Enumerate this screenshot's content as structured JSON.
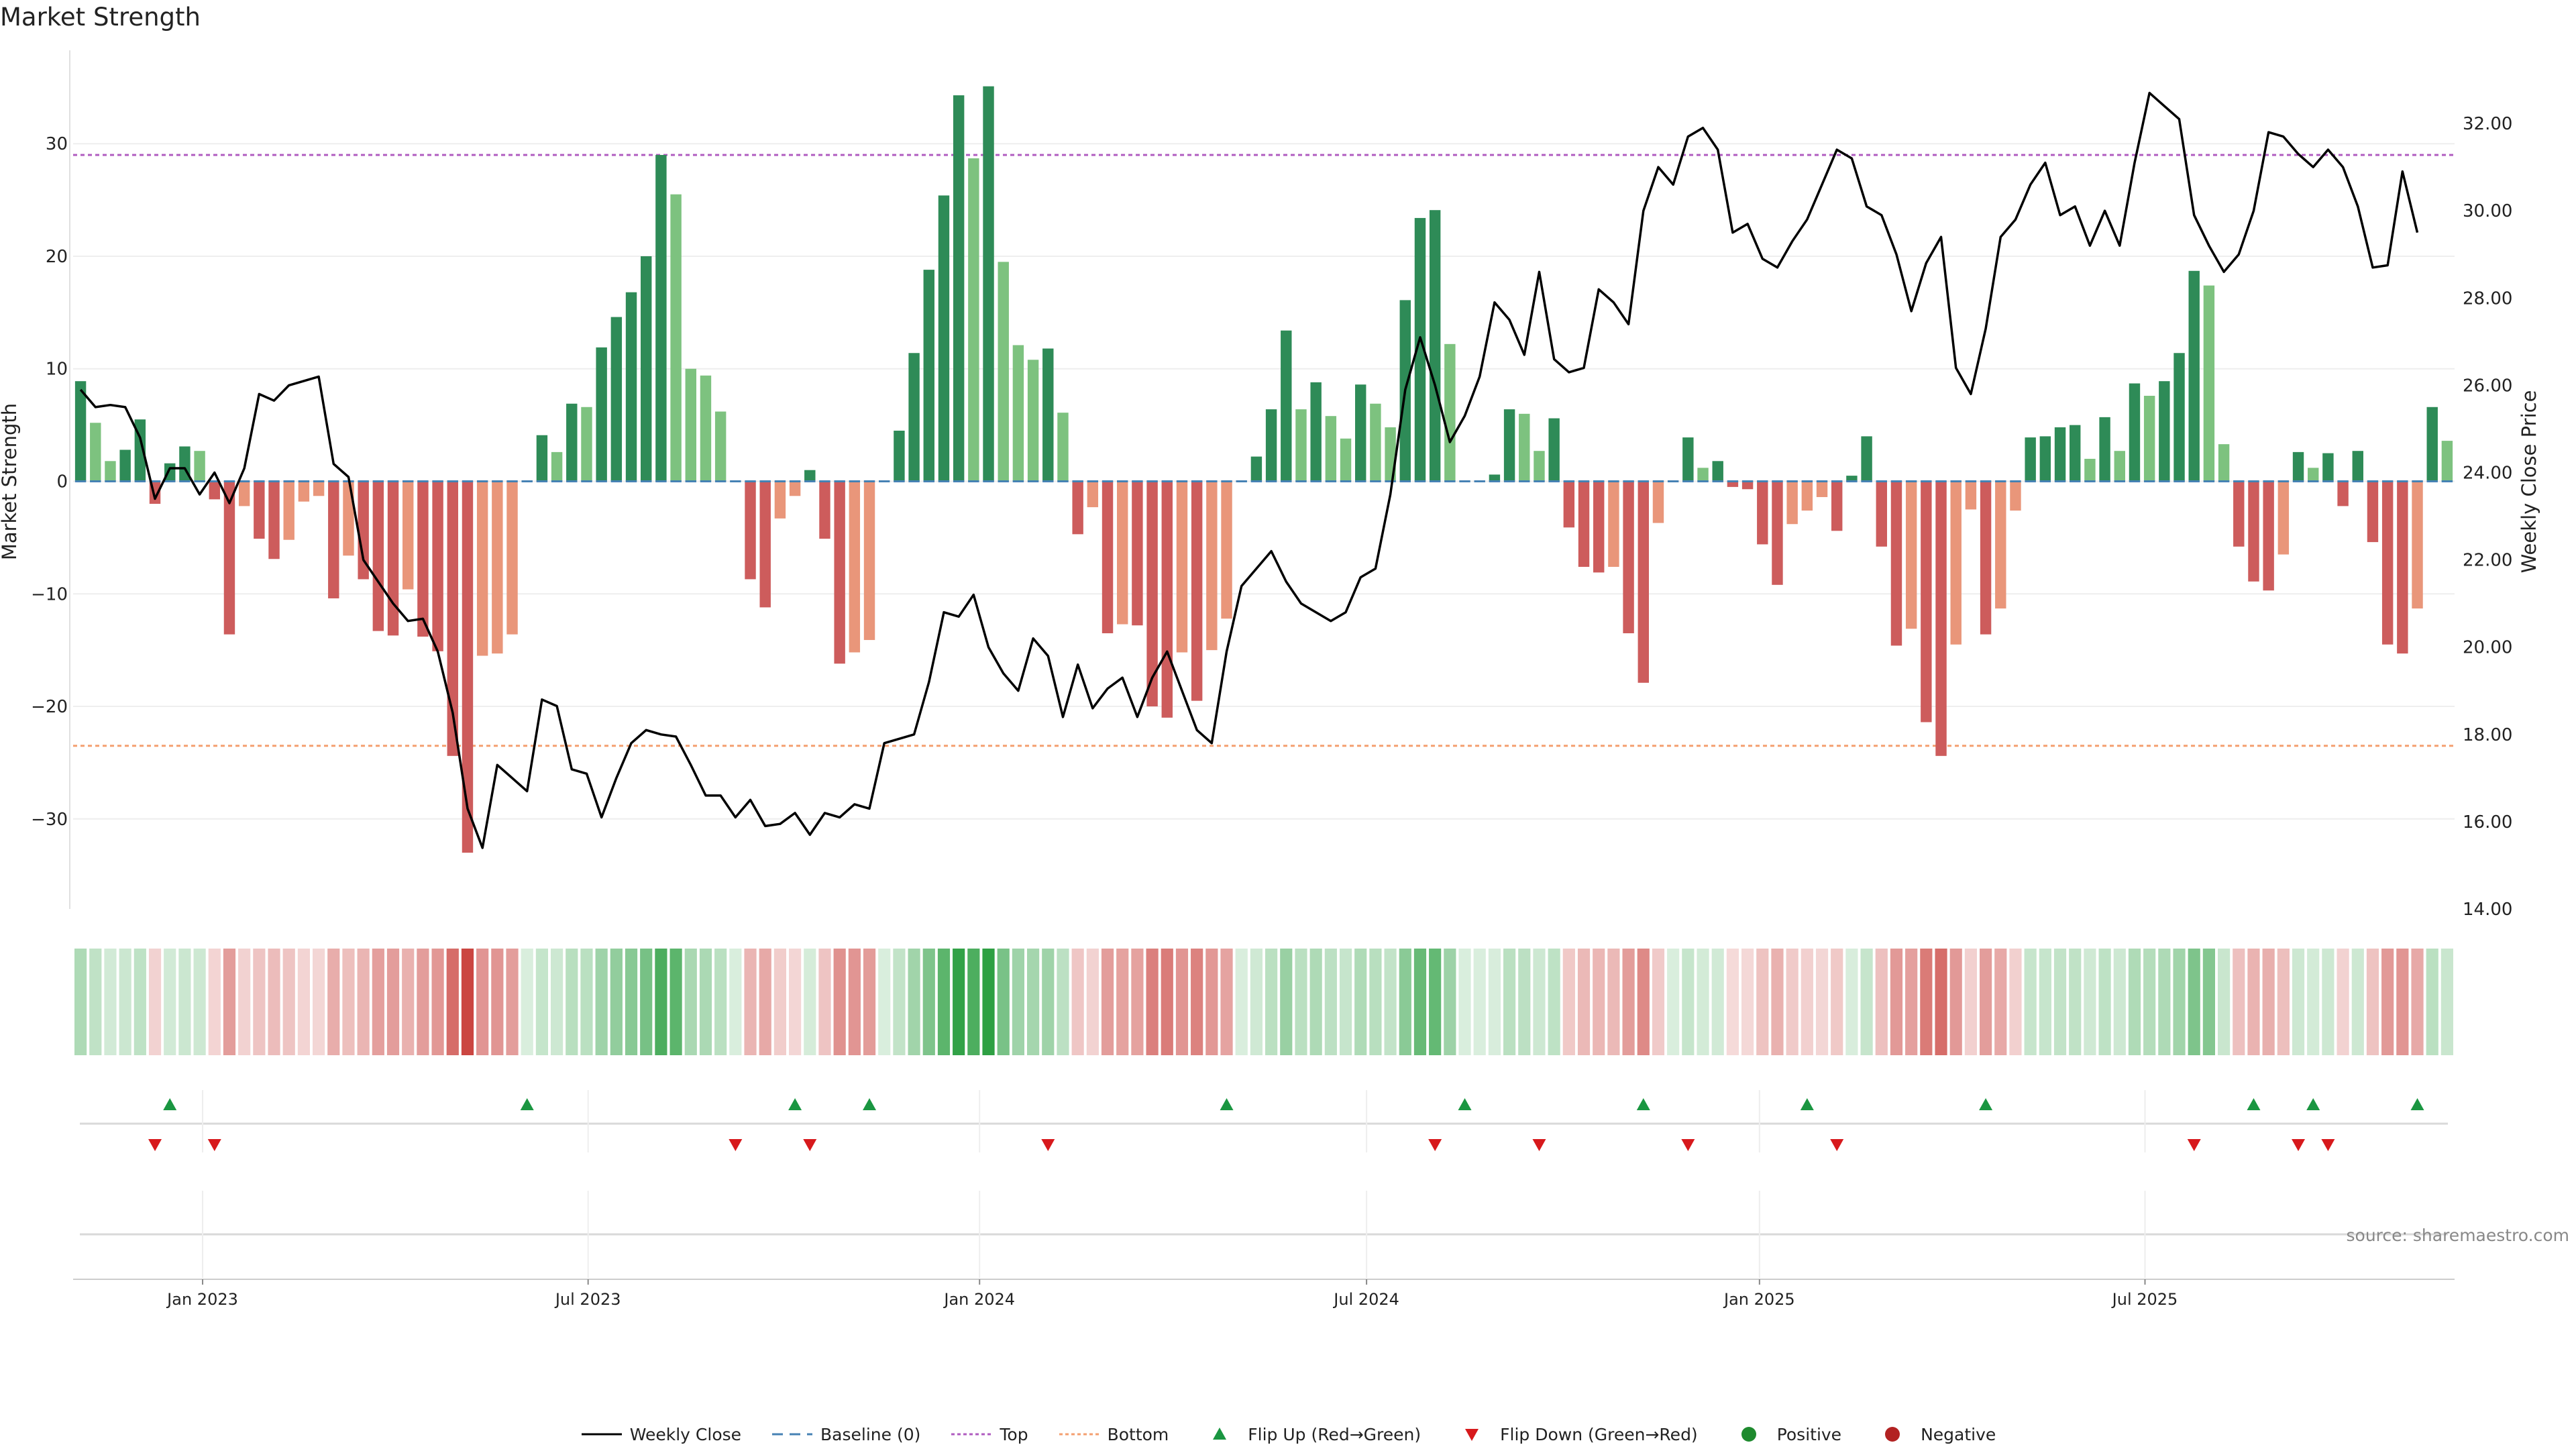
{
  "title": "Market Strength",
  "source": "source: sharemaestro.com",
  "colors": {
    "pos_strong": "#2e8b57",
    "pos_light": "#7dc27f",
    "neg_strong": "#cd5c5c",
    "neg_light": "#e9967a",
    "top_line": "#b05cc0",
    "bottom_line": "#f4a070",
    "baseline": "#4682b4",
    "flip_up": "#1a9641",
    "flip_down": "#d7191c",
    "price": "#000000"
  },
  "legend": [
    {
      "key": "weekly_close",
      "label": "Weekly Close"
    },
    {
      "key": "baseline",
      "label": "Baseline (0)"
    },
    {
      "key": "top",
      "label": "Top"
    },
    {
      "key": "bottom",
      "label": "Bottom"
    },
    {
      "key": "flip_up",
      "label": "Flip Up (Red→Green)"
    },
    {
      "key": "flip_down",
      "label": "Flip Down (Green→Red)"
    },
    {
      "key": "positive",
      "label": "Positive"
    },
    {
      "key": "negative",
      "label": "Negative"
    }
  ],
  "chart_data": {
    "type": "bar",
    "title": "Market Strength",
    "ylabel": "Market Strength",
    "y2label": "Weekly Close Price",
    "ylim": [
      -38,
      38
    ],
    "y_ticks": [
      -30,
      -20,
      -10,
      0,
      10,
      20,
      30
    ],
    "y_tick_labels": [
      "−30",
      "−20",
      "−10",
      "0",
      "10",
      "20",
      "30"
    ],
    "y2lim": [
      14.0,
      33.6
    ],
    "y2_ticks": [
      14,
      16,
      18,
      20,
      22,
      24,
      26,
      28,
      30,
      32
    ],
    "y2_tick_labels": [
      "14.00",
      "16.00",
      "18.00",
      "20.00",
      "22.00",
      "24.00",
      "26.00",
      "28.00",
      "30.00",
      "32.00"
    ],
    "x_tick_labels": [
      "Jan 2023",
      "Jul 2023",
      "Jan 2024",
      "Jul 2024",
      "Jan 2025",
      "Jul 2025"
    ],
    "x_tick_weeks": [
      8.7,
      34.6,
      60.9,
      86.9,
      113.3,
      139.2
    ],
    "top_threshold": 29,
    "bottom_threshold": -23.5,
    "grid": true,
    "legend_position": "bottom",
    "series": [
      {
        "name": "Market Strength (weekly)",
        "values": [
          8.9,
          5.2,
          1.8,
          2.8,
          5.5,
          -2.0,
          1.6,
          3.1,
          2.7,
          -1.6,
          -13.6,
          -2.2,
          -5.1,
          -6.9,
          -5.2,
          -1.8,
          -1.3,
          -10.4,
          -6.6,
          -8.7,
          -13.3,
          -13.7,
          -9.6,
          -13.8,
          -15.1,
          -24.4,
          -33.0,
          -15.5,
          -15.3,
          -13.6,
          0,
          4.1,
          2.6,
          6.9,
          6.6,
          11.9,
          14.6,
          16.8,
          20.0,
          29.0,
          25.5,
          10.0,
          9.4,
          6.2,
          0,
          -8.7,
          -11.2,
          -3.3,
          -1.3,
          1.0,
          -5.1,
          -16.2,
          -15.2,
          -14.1,
          0,
          4.5,
          11.4,
          18.8,
          25.4,
          34.3,
          28.7,
          35.1,
          19.5,
          12.1,
          10.8,
          11.8,
          6.1,
          -4.7,
          -2.3,
          -13.5,
          -12.7,
          -12.8,
          -20.0,
          -21.0,
          -15.2,
          -19.5,
          -15.0,
          -12.2,
          0,
          2.2,
          6.4,
          13.4,
          6.4,
          8.8,
          5.8,
          3.8,
          8.6,
          6.9,
          4.8,
          16.1,
          23.4,
          24.1,
          12.2,
          0,
          0,
          0.6,
          6.4,
          6.0,
          2.7,
          5.6,
          -4.1,
          -7.6,
          -8.1,
          -7.6,
          -13.5,
          -17.9,
          -3.7,
          0,
          3.9,
          1.2,
          1.8,
          -0.5,
          -0.7,
          -5.6,
          -9.2,
          -3.8,
          -2.6,
          -1.4,
          -4.4,
          0.5,
          4.0,
          -5.8,
          -14.6,
          -13.1,
          -21.4,
          -24.4,
          -14.5,
          -2.5,
          -13.6,
          -11.3,
          -2.6,
          3.9,
          4.0,
          4.8,
          5.0,
          2.0,
          5.7,
          2.7,
          8.7,
          7.6,
          8.9,
          11.4,
          18.7,
          17.4,
          3.3,
          -5.8,
          -8.9,
          -9.7,
          -6.5,
          2.6,
          1.2,
          2.5,
          -2.2,
          2.7,
          -5.4,
          -14.5,
          -15.3,
          -11.3,
          6.6,
          3.6
        ]
      },
      {
        "name": "Weekly Close",
        "values": [
          25.9,
          25.5,
          25.55,
          25.5,
          24.8,
          23.4,
          24.1,
          24.1,
          23.5,
          24.0,
          23.3,
          24.1,
          25.8,
          25.65,
          26.0,
          26.1,
          26.2,
          24.2,
          23.9,
          22.0,
          21.5,
          21.0,
          20.6,
          20.65,
          19.9,
          18.5,
          16.3,
          15.4,
          17.3,
          17.0,
          16.7,
          18.8,
          18.65,
          17.2,
          17.1,
          16.1,
          17.0,
          17.8,
          18.1,
          18.0,
          17.95,
          17.3,
          16.6,
          16.6,
          16.1,
          16.5,
          15.9,
          15.95,
          16.2,
          15.7,
          16.2,
          16.1,
          16.4,
          16.3,
          17.8,
          17.9,
          18.0,
          19.2,
          20.8,
          20.7,
          21.2,
          20.0,
          19.4,
          19.0,
          20.2,
          19.8,
          18.4,
          19.6,
          18.6,
          19.05,
          19.3,
          18.4,
          19.3,
          19.9,
          19.0,
          18.1,
          17.8,
          19.9,
          21.4,
          21.8,
          22.2,
          21.5,
          21.0,
          20.8,
          20.6,
          20.8,
          21.6,
          21.8,
          23.5,
          25.9,
          27.1,
          26.0,
          24.7,
          25.3,
          26.2,
          27.9,
          27.5,
          26.7,
          28.6,
          26.6,
          26.3,
          26.4,
          28.2,
          27.9,
          27.4,
          30.0,
          31.0,
          30.6,
          31.7,
          31.9,
          31.4,
          29.5,
          29.7,
          28.9,
          28.7,
          29.3,
          29.8,
          30.6,
          31.4,
          31.2,
          30.1,
          29.9,
          29.0,
          27.7,
          28.8,
          29.4,
          26.4,
          25.8,
          27.3,
          29.4,
          29.8,
          30.6,
          31.1,
          29.9,
          30.1,
          29.2,
          30.0,
          29.2,
          31.1,
          32.7,
          32.4,
          32.1,
          29.9,
          29.2,
          28.6,
          29.0,
          30.0,
          31.8,
          31.7,
          31.3,
          31.0,
          31.4,
          31.0,
          30.1,
          28.7,
          28.75,
          30.9,
          29.5
        ]
      }
    ],
    "heat_strip": {
      "label": "strength heat strip",
      "values_ref": "Market Strength (weekly)"
    },
    "flips": {
      "flip_up_weeks": [
        6,
        30,
        48,
        53,
        77,
        93,
        105,
        116,
        128,
        146,
        150,
        157
      ],
      "flip_down_weeks": [
        5,
        9,
        44,
        49,
        65,
        91,
        98,
        108,
        118,
        142,
        149,
        151
      ]
    }
  }
}
